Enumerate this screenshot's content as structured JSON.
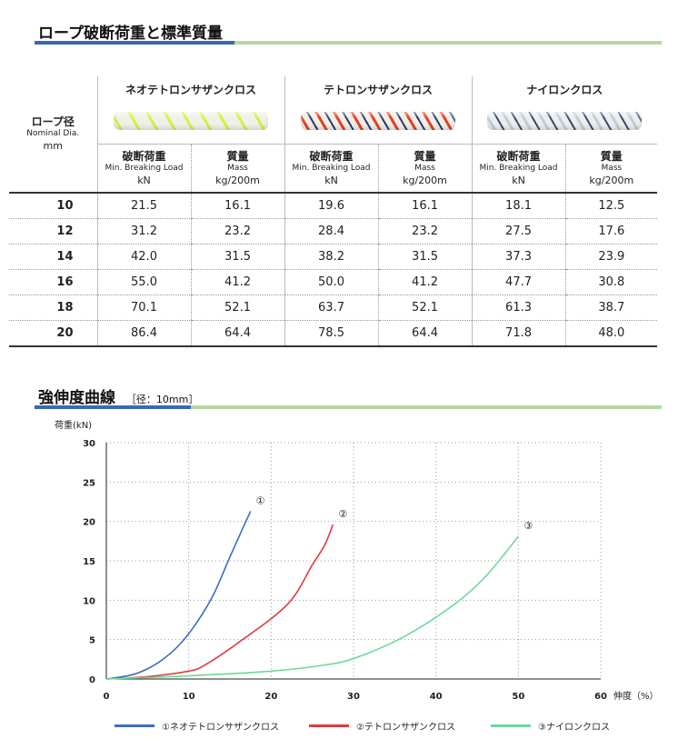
{
  "section1": {
    "title": "ロープ破断荷重と標準質量"
  },
  "table": {
    "dia_header": {
      "ja": "ロープ径",
      "en": "Nominal Dia.",
      "unit": "mm"
    },
    "groups": [
      {
        "name": "ネオテトロンサザンクロス",
        "colors": [
          "#f0f0e8",
          "#d8f040",
          "#eef2e0"
        ]
      },
      {
        "name": "テトロンサザンクロス",
        "colors": [
          "#f2eee2",
          "#e04030",
          "#243a7a"
        ]
      },
      {
        "name": "ナイロンクロス",
        "colors": [
          "#eaeef0",
          "#c4ccd2",
          "#3a4a6a"
        ]
      }
    ],
    "col_heads": {
      "load": {
        "ja": "破断荷重",
        "en": "Min. Breaking Load",
        "unit": "kN"
      },
      "mass": {
        "ja": "質量",
        "en": "Mass",
        "unit": "kg/200m"
      }
    },
    "rows": [
      {
        "dia": "10",
        "v": [
          "21.5",
          "16.1",
          "19.6",
          "16.1",
          "18.1",
          "12.5"
        ]
      },
      {
        "dia": "12",
        "v": [
          "31.2",
          "23.2",
          "28.4",
          "23.2",
          "27.5",
          "17.6"
        ]
      },
      {
        "dia": "14",
        "v": [
          "42.0",
          "31.5",
          "38.2",
          "31.5",
          "37.3",
          "23.9"
        ]
      },
      {
        "dia": "16",
        "v": [
          "55.0",
          "41.2",
          "50.0",
          "41.2",
          "47.7",
          "30.8"
        ]
      },
      {
        "dia": "18",
        "v": [
          "70.1",
          "52.1",
          "63.7",
          "52.1",
          "61.3",
          "38.7"
        ]
      },
      {
        "dia": "20",
        "v": [
          "86.4",
          "64.4",
          "78.5",
          "64.4",
          "71.8",
          "48.0"
        ]
      }
    ]
  },
  "section2": {
    "title": "強伸度曲線",
    "note": "［径：10mm］"
  },
  "chart_data": {
    "type": "line",
    "xlabel": "伸度（%）",
    "ylabel": "荷重(kN)",
    "xlim": [
      0,
      60
    ],
    "ylim": [
      0,
      30
    ],
    "xticks": [
      0,
      10,
      20,
      30,
      40,
      50,
      60
    ],
    "yticks": [
      0,
      5,
      10,
      15,
      20,
      25,
      30
    ],
    "grid": "dotted",
    "legend_position": "bottom",
    "series": [
      {
        "name": "①ネオテトロンサザンクロス",
        "marker": "①",
        "color": "#3a6fbf",
        "x": [
          0,
          3,
          5,
          7,
          9,
          11,
          13,
          15,
          16.5,
          17.5
        ],
        "y": [
          0,
          0.5,
          1.3,
          2.6,
          4.5,
          7.2,
          10.7,
          15.5,
          19,
          21.3
        ]
      },
      {
        "name": "②テトロンサザンクロス",
        "marker": "②",
        "color": "#e03a3e",
        "x": [
          0,
          5,
          10,
          12,
          16,
          22,
          25,
          26.5,
          27.5
        ],
        "y": [
          0,
          0.3,
          1,
          1.8,
          4.6,
          9.5,
          14.5,
          17,
          19.6
        ]
      },
      {
        "name": "③ナイロンクロス",
        "marker": "③",
        "color": "#6cd89a",
        "x": [
          0,
          10,
          20,
          26,
          30,
          36,
          42,
          46,
          50
        ],
        "y": [
          0,
          0.4,
          1,
          1.7,
          2.6,
          5.3,
          9.3,
          13,
          18.1
        ]
      }
    ]
  }
}
